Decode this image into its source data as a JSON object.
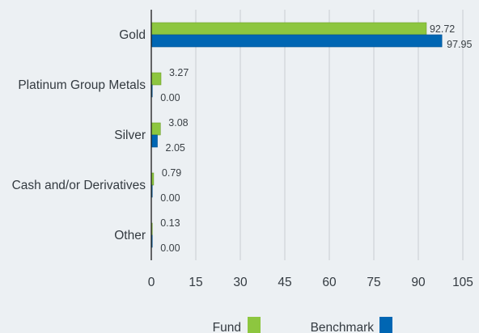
{
  "chart_data": {
    "type": "bar",
    "orientation": "horizontal",
    "categories": [
      "Gold",
      "Platinum Group Metals",
      "Silver",
      "Cash and/or Derivatives",
      "Other"
    ],
    "series": [
      {
        "name": "Fund",
        "color": "#8dc63f",
        "values": [
          92.72,
          3.27,
          3.08,
          0.79,
          0.13
        ]
      },
      {
        "name": "Benchmark",
        "color": "#0066b3",
        "values": [
          97.95,
          0.0,
          2.05,
          0.0,
          0.0
        ]
      }
    ],
    "xlim": [
      0,
      105
    ],
    "xticks": [
      0,
      15,
      30,
      45,
      60,
      75,
      90,
      105
    ],
    "grid": true,
    "legend_position": "bottom",
    "title": "",
    "xlabel": "",
    "ylabel": ""
  }
}
